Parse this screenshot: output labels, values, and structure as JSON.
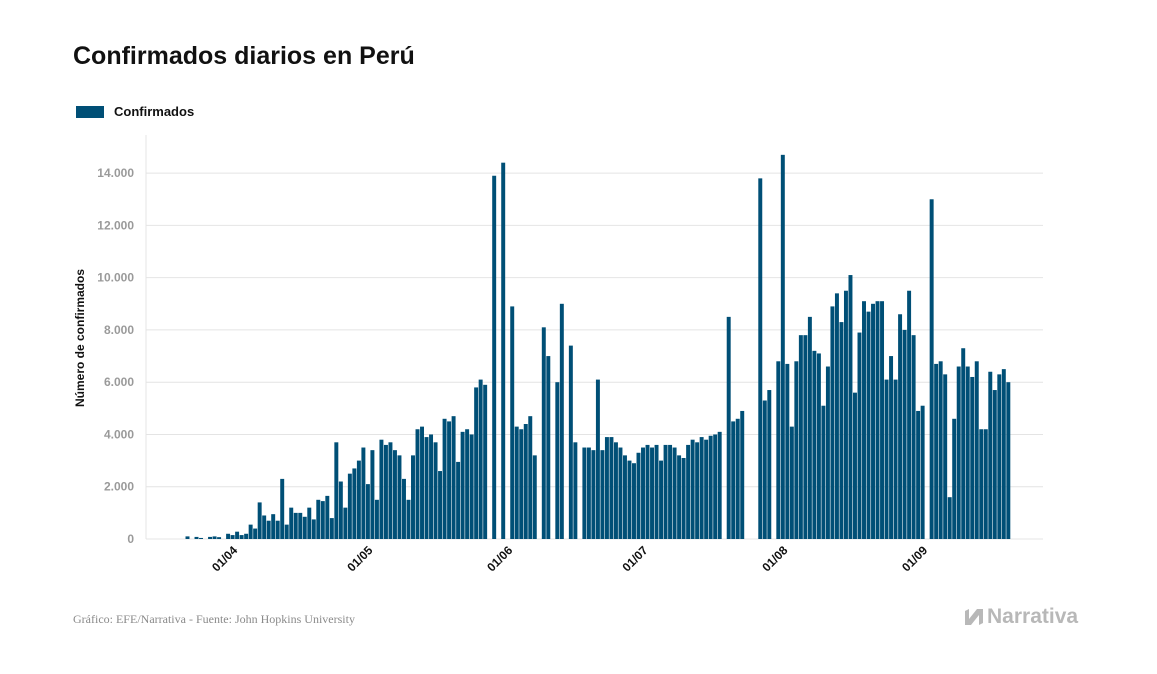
{
  "title": "Confirmados diarios en Perú",
  "legend": {
    "label": "Confirmados",
    "color": "#004f76"
  },
  "source": "Gráfico: EFE/Narrativa - Fuente: John Hopkins University",
  "logo": {
    "text": "Narrativa",
    "icon": "narrativa-n-icon"
  },
  "chart_data": {
    "type": "bar",
    "ylabel": "Número de confirmados",
    "ylim": [
      0,
      15000
    ],
    "yticks": [
      0,
      2000,
      4000,
      6000,
      8000,
      10000,
      12000,
      14000
    ],
    "ytick_labels": [
      "0",
      "2.000",
      "4.000",
      "6.000",
      "8.000",
      "10.000",
      "12.000",
      "14.000"
    ],
    "xticks": [
      {
        "label": "01/04",
        "date": "2020-04-01"
      },
      {
        "label": "01/05",
        "date": "2020-05-01"
      },
      {
        "label": "01/06",
        "date": "2020-06-01"
      },
      {
        "label": "01/07",
        "date": "2020-07-01"
      },
      {
        "label": "01/08",
        "date": "2020-08-01"
      },
      {
        "label": "01/09",
        "date": "2020-09-01"
      }
    ],
    "grid": true,
    "series": [
      {
        "name": "Confirmados",
        "color": "#004f76",
        "start_date": "2020-03-23",
        "values": [
          100,
          0,
          80,
          40,
          0,
          80,
          100,
          70,
          0,
          200,
          150,
          280,
          150,
          200,
          550,
          400,
          1400,
          900,
          700,
          950,
          700,
          2300,
          550,
          1200,
          1000,
          1000,
          850,
          1200,
          750,
          1500,
          1450,
          1650,
          800,
          3700,
          2200,
          1200,
          2500,
          2700,
          3000,
          3500,
          2100,
          3400,
          1500,
          3800,
          3600,
          3700,
          3400,
          3200,
          2300,
          1500,
          3200,
          4200,
          4300,
          3900,
          4000,
          3700,
          2600,
          4600,
          4500,
          4700,
          2950,
          4100,
          4200,
          4000,
          5800,
          6100,
          5900,
          0,
          13900,
          0,
          14400,
          0,
          8900,
          4300,
          4200,
          4400,
          4700,
          3200,
          0,
          8100,
          7000,
          0,
          6000,
          9000,
          0,
          7400,
          3700,
          0,
          3500,
          3500,
          3400,
          6100,
          3400,
          3900,
          3900,
          3700,
          3500,
          3200,
          3000,
          2900,
          3300,
          3500,
          3600,
          3500,
          3600,
          3000,
          3600,
          3600,
          3500,
          3200,
          3100,
          3600,
          3800,
          3700,
          3900,
          3800,
          3950,
          4000,
          4100,
          0,
          8500,
          4500,
          4600,
          4900,
          0,
          0,
          0,
          13800,
          5300,
          5700,
          0,
          6800,
          14700,
          6700,
          4300,
          6800,
          7800,
          7800,
          8500,
          7200,
          7100,
          5100,
          6600,
          8900,
          9400,
          8300,
          9500,
          10100,
          5600,
          7900,
          9100,
          8700,
          9000,
          9100,
          9100,
          6100,
          7000,
          6100,
          8600,
          8000,
          9500,
          7800,
          4900,
          5100,
          0,
          13000,
          6700,
          6800,
          6300,
          1600,
          4600,
          6600,
          7300,
          6600,
          6200,
          6800,
          4200,
          4200,
          6400,
          5700,
          6300,
          6500,
          6000
        ]
      }
    ]
  }
}
